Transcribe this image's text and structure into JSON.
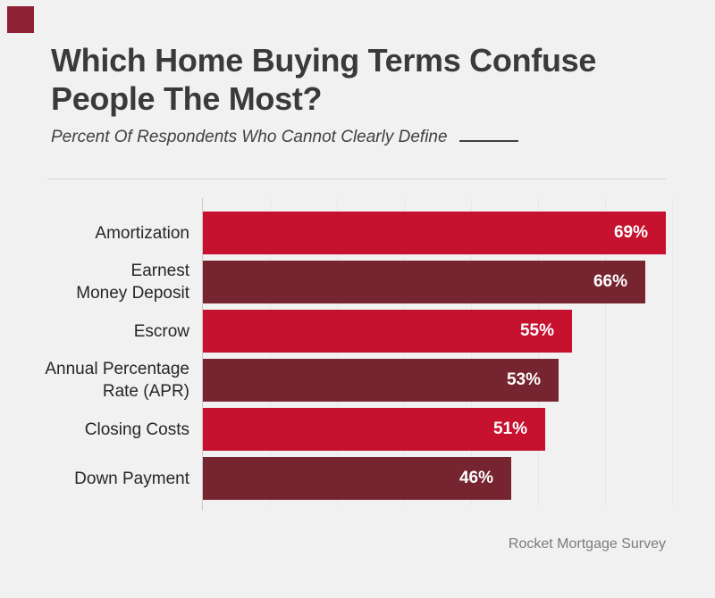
{
  "header": {
    "title_line1": "Which Home Buying Terms Confuse",
    "title_line2": "People The Most?",
    "subtitle": "Percent Of Respondents Who Cannot Clearly Define"
  },
  "footer": {
    "source": "Rocket Mortgage Survey"
  },
  "colors": {
    "background": "#f1f1f2",
    "bar_red": "#c6112f",
    "bar_maroon": "#76242f",
    "brand_square": "#8e2133",
    "value_text": "#ffffff",
    "gridline": "#e7e7e9"
  },
  "chart_data": {
    "type": "bar",
    "orientation": "horizontal",
    "title": "Which Home Buying Terms Confuse People The Most?",
    "subtitle": "Percent Of Respondents Who Cannot Clearly Define ______",
    "source": "Rocket Mortgage Survey",
    "categories": [
      "Amortization",
      "Earnest\nMoney Deposit",
      "Escrow",
      "Annual Percentage\nRate (APR)",
      "Closing Costs",
      "Down Payment"
    ],
    "values": [
      69,
      66,
      55,
      53,
      51,
      46
    ],
    "value_labels": [
      "69%",
      "66%",
      "55%",
      "53%",
      "51%",
      "46%"
    ],
    "xlim": [
      0,
      70
    ],
    "gridline_interval": 10,
    "grid": true,
    "legend": false,
    "bar_color_pattern": [
      "#c6112f",
      "#76242f"
    ]
  }
}
